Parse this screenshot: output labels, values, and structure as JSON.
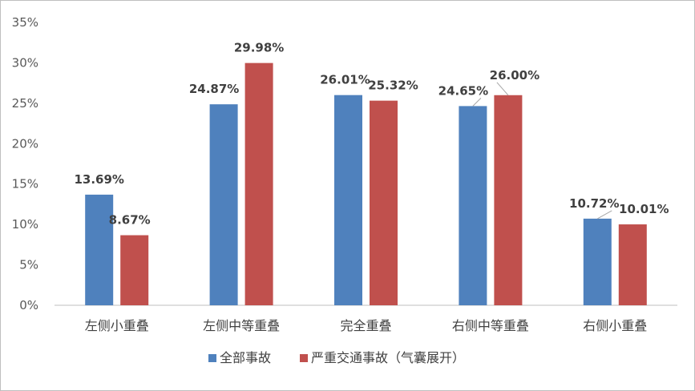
{
  "chart_data": {
    "type": "bar",
    "title": "",
    "xlabel": "",
    "ylabel": "",
    "categories": [
      "左侧小重叠",
      "左侧中等重叠",
      "完全重叠",
      "右侧中等重叠",
      "右侧小重叠"
    ],
    "series": [
      {
        "name": "全部事故",
        "color": "#4F81BD",
        "values": [
          13.69,
          24.87,
          26.01,
          24.65,
          10.72
        ]
      },
      {
        "name": "严重交通事故（气囊展开）",
        "color": "#C0504D",
        "values": [
          8.67,
          29.98,
          25.32,
          26.0,
          10.01
        ]
      }
    ],
    "value_labels": [
      [
        "13.69%",
        "24.87%",
        "26.01%",
        "24.65%",
        "10.72%"
      ],
      [
        "8.67%",
        "29.98%",
        "25.32%",
        "26.00%",
        "10.01%"
      ]
    ],
    "y_ticks": [
      "0%",
      "5%",
      "10%",
      "15%",
      "20%",
      "25%",
      "30%",
      "35%"
    ],
    "ylim": [
      0,
      35
    ],
    "grid": false,
    "legend_position": "bottom"
  }
}
